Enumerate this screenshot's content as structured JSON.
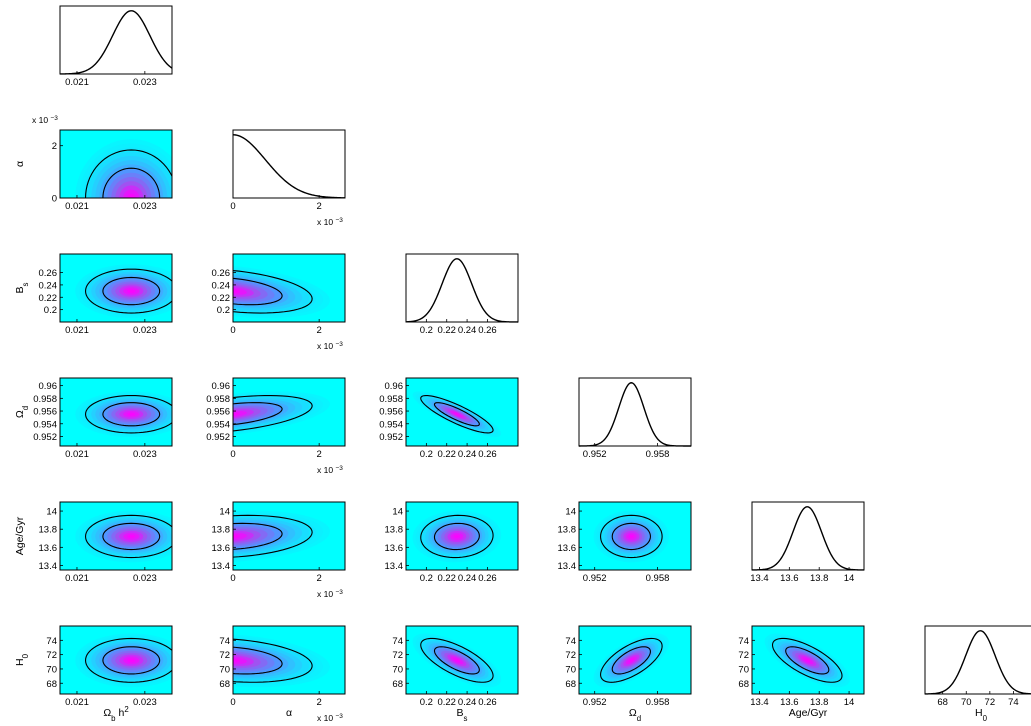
{
  "colors": {
    "background": "#00ffff",
    "peak": "#ff00ff",
    "contour": "#000000",
    "line": "#000000",
    "frame": "#000000"
  },
  "chart_data": {
    "type": "triangle-corner",
    "params": [
      {
        "key": "omega_b",
        "label": {
          "base": "Ω",
          "sub": "b",
          "after": " h",
          "sup": "2"
        },
        "range": [
          0.0205,
          0.0238
        ],
        "ticks": [
          0.021,
          0.023
        ],
        "tick_labels": [
          "0.021",
          "0.023"
        ],
        "multiplier": "",
        "mean": 0.0226,
        "sigma": 0.00055
      },
      {
        "key": "alpha",
        "label": {
          "base": "α",
          "sub": "",
          "after": "",
          "sup": ""
        },
        "range": [
          0,
          2.6
        ],
        "ticks": [
          0,
          2
        ],
        "tick_labels": [
          "0",
          "2"
        ],
        "multiplier": "x 10",
        "multiplier_exp": "−3",
        "mean": 0,
        "sigma": 0.75
      },
      {
        "key": "B_s",
        "label": {
          "base": "B",
          "sub": "s",
          "after": "",
          "sup": ""
        },
        "range": [
          0.18,
          0.29
        ],
        "ticks": [
          0.2,
          0.22,
          0.24,
          0.26
        ],
        "tick_labels": [
          "0.2",
          "0.22",
          "0.24",
          "0.26"
        ],
        "multiplier": "",
        "mean": 0.23,
        "sigma": 0.0145
      },
      {
        "key": "omega_d",
        "label": {
          "base": "Ω",
          "sub": "d",
          "after": "",
          "sup": ""
        },
        "range": [
          0.9505,
          0.9612
        ],
        "ticks": [
          0.952,
          0.954,
          0.956,
          0.958,
          0.96
        ],
        "tick_labels": [
          "0.952",
          "0.954",
          "0.956",
          "0.958",
          "0.96"
        ],
        "xticks": [
          0.952,
          0.958
        ],
        "xtick_labels": [
          "0.952",
          "0.958"
        ],
        "multiplier": "",
        "mean": 0.9555,
        "sigma": 0.0012
      },
      {
        "key": "age",
        "label": {
          "base": "Age/Gyr",
          "sub": "",
          "after": "",
          "sup": ""
        },
        "range": [
          13.35,
          14.1
        ],
        "ticks": [
          13.4,
          13.6,
          13.8,
          14
        ],
        "tick_labels": [
          "13.4",
          "13.6",
          "13.8",
          "14"
        ],
        "multiplier": "",
        "mean": 13.72,
        "sigma": 0.095
      },
      {
        "key": "H0",
        "label": {
          "base": "H",
          "sub": "0",
          "after": "",
          "sup": ""
        },
        "range": [
          66.5,
          76
        ],
        "ticks": [
          68,
          70,
          72,
          74
        ],
        "tick_labels": [
          "68",
          "70",
          "72",
          "74"
        ],
        "multiplier": "",
        "mean": 71.2,
        "sigma": 1.25
      }
    ],
    "correlations": [
      [
        1,
        0,
        0,
        0,
        0,
        0
      ],
      [
        0,
        1,
        -0.35,
        0.45,
        0.2,
        -0.25
      ],
      [
        0,
        -0.35,
        1,
        -0.85,
        0.05,
        -0.7
      ],
      [
        0,
        0.45,
        -0.85,
        1,
        0,
        0.65
      ],
      [
        0,
        0.2,
        0.05,
        0,
        1,
        -0.7
      ],
      [
        0,
        -0.25,
        -0.7,
        0.65,
        -0.7,
        1
      ]
    ],
    "contour_levels": [
      "68%",
      "95%"
    ],
    "grid": false,
    "legend": "none"
  }
}
